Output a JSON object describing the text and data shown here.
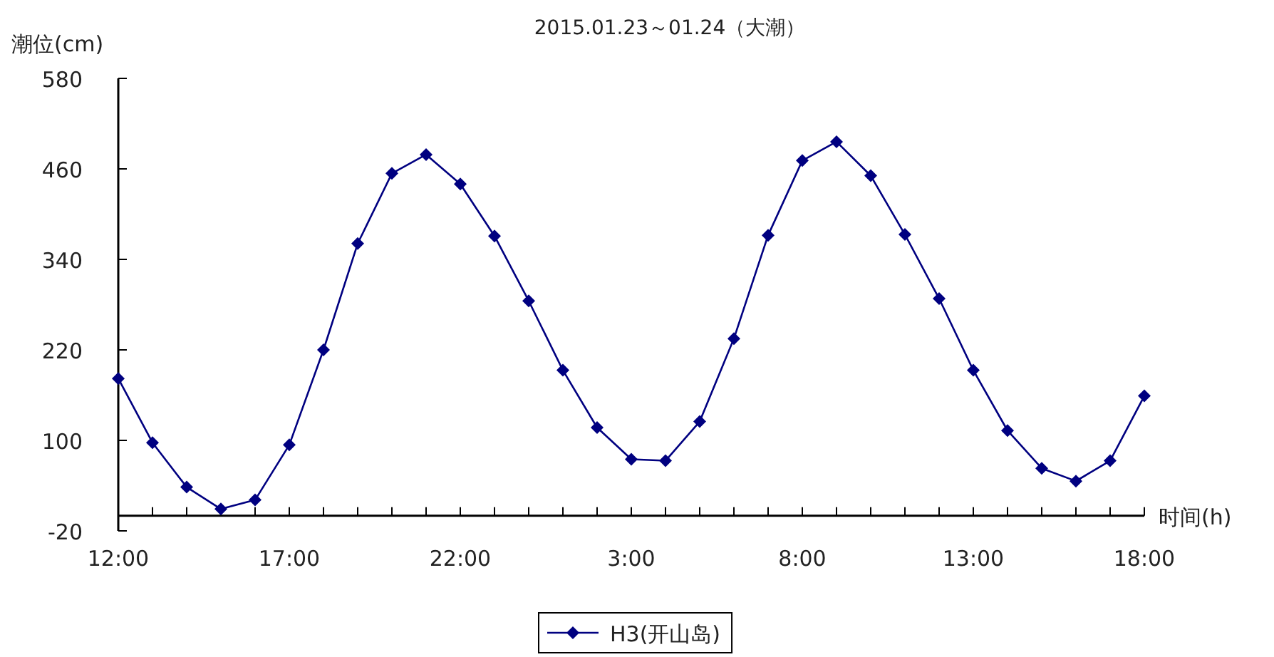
{
  "chart_data": {
    "type": "line",
    "title": "2015.01.23～01.24（大潮）",
    "xlabel": "时间(h)",
    "ylabel": "潮位(cm)",
    "x": [
      "2015-01-23T12:00",
      "2015-01-23T13:00",
      "2015-01-23T14:00",
      "2015-01-23T15:00",
      "2015-01-23T16:00",
      "2015-01-23T17:00",
      "2015-01-23T18:00",
      "2015-01-23T19:00",
      "2015-01-23T20:00",
      "2015-01-23T21:00",
      "2015-01-23T22:00",
      "2015-01-23T23:00",
      "2015-01-24T00:00",
      "2015-01-24T01:00",
      "2015-01-24T02:00",
      "2015-01-24T03:00",
      "2015-01-24T04:00",
      "2015-01-24T05:00",
      "2015-01-24T06:00",
      "2015-01-24T07:00",
      "2015-01-24T08:00",
      "2015-01-24T09:00",
      "2015-01-24T10:00",
      "2015-01-24T11:00",
      "2015-01-24T12:00",
      "2015-01-24T13:00",
      "2015-01-24T14:00",
      "2015-01-24T15:00",
      "2015-01-24T16:00",
      "2015-01-24T17:00",
      "2015-01-24T18:00"
    ],
    "series": [
      {
        "name": "H3(开山岛)",
        "color": "#000080",
        "values": [
          182,
          97,
          38,
          9,
          21,
          94,
          220,
          361,
          454,
          479,
          440,
          371,
          285,
          193,
          117,
          75,
          73,
          125,
          235,
          372,
          471,
          496,
          451,
          373,
          288,
          193,
          113,
          63,
          46,
          73,
          159
        ]
      }
    ],
    "xlim": [
      "2015-01-23T12:00",
      "2015-01-24T18:00"
    ],
    "ylim": [
      -20,
      580
    ],
    "xticks": [
      {
        "value": "2015-01-23T12:00",
        "label": "12:00"
      },
      {
        "value": "2015-01-23T13:00",
        "label": null
      },
      {
        "value": "2015-01-23T14:00",
        "label": null
      },
      {
        "value": "2015-01-23T15:00",
        "label": null
      },
      {
        "value": "2015-01-23T16:00",
        "label": null
      },
      {
        "value": "2015-01-23T17:00",
        "label": "17:00"
      },
      {
        "value": "2015-01-23T18:00",
        "label": null
      },
      {
        "value": "2015-01-23T19:00",
        "label": null
      },
      {
        "value": "2015-01-23T20:00",
        "label": null
      },
      {
        "value": "2015-01-23T21:00",
        "label": null
      },
      {
        "value": "2015-01-23T22:00",
        "label": "22:00"
      },
      {
        "value": "2015-01-23T23:00",
        "label": null
      },
      {
        "value": "2015-01-24T00:00",
        "label": null
      },
      {
        "value": "2015-01-24T01:00",
        "label": null
      },
      {
        "value": "2015-01-24T02:00",
        "label": null
      },
      {
        "value": "2015-01-24T03:00",
        "label": "3:00"
      },
      {
        "value": "2015-01-24T04:00",
        "label": null
      },
      {
        "value": "2015-01-24T05:00",
        "label": null
      },
      {
        "value": "2015-01-24T06:00",
        "label": null
      },
      {
        "value": "2015-01-24T07:00",
        "label": null
      },
      {
        "value": "2015-01-24T08:00",
        "label": "8:00"
      },
      {
        "value": "2015-01-24T09:00",
        "label": null
      },
      {
        "value": "2015-01-24T10:00",
        "label": null
      },
      {
        "value": "2015-01-24T11:00",
        "label": null
      },
      {
        "value": "2015-01-24T12:00",
        "label": null
      },
      {
        "value": "2015-01-24T13:00",
        "label": "13:00"
      },
      {
        "value": "2015-01-24T14:00",
        "label": null
      },
      {
        "value": "2015-01-24T15:00",
        "label": null
      },
      {
        "value": "2015-01-24T16:00",
        "label": null
      },
      {
        "value": "2015-01-24T17:00",
        "label": null
      },
      {
        "value": "2015-01-24T18:00",
        "label": "18:00"
      }
    ],
    "yticks": [
      -20,
      100,
      220,
      340,
      460,
      580
    ],
    "legend": "bottom",
    "marker": "diamond",
    "line_style": "solid"
  }
}
